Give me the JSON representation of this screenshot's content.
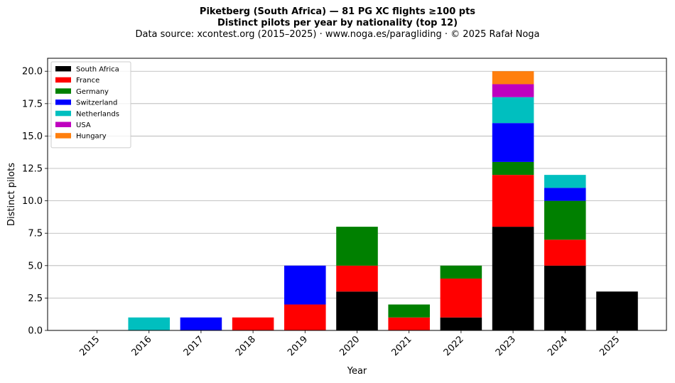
{
  "title": {
    "line1": "Piketberg (South Africa)  —  81 PG XC flights ≥100 pts",
    "line2": "Distinct pilots per year by nationality (top 12)",
    "line3": "Data source: xcontest.org (2015–2025)  ·  www.noga.es/paragliding  ·  © 2025 Rafał Noga"
  },
  "chart_data": {
    "type": "bar",
    "stacked": true,
    "title": "Piketberg (South Africa)  —  81 PG XC flights ≥100 pts",
    "subtitle": "Distinct pilots per year by nationality (top 12)",
    "xlabel": "Year",
    "ylabel": "Distinct pilots",
    "ylim": [
      0,
      21
    ],
    "yticks": [
      "0.0",
      "2.5",
      "5.0",
      "7.5",
      "10.0",
      "12.5",
      "15.0",
      "17.5",
      "20.0"
    ],
    "grid": "y",
    "legend_position": "top-left",
    "categories": [
      "2015",
      "2016",
      "2017",
      "2018",
      "2019",
      "2020",
      "2021",
      "2022",
      "2023",
      "2024",
      "2025"
    ],
    "series": [
      {
        "name": "South Africa",
        "color": "#000000",
        "values": [
          0,
          0,
          0,
          0,
          0,
          3,
          0,
          1,
          8,
          5,
          3
        ]
      },
      {
        "name": "France",
        "color": "#ff0000",
        "values": [
          0,
          0,
          0,
          1,
          2,
          2,
          1,
          3,
          4,
          2,
          0
        ]
      },
      {
        "name": "Germany",
        "color": "#008000",
        "values": [
          0,
          0,
          0,
          0,
          0,
          3,
          1,
          1,
          1,
          3,
          0
        ]
      },
      {
        "name": "Switzerland",
        "color": "#0000ff",
        "values": [
          0,
          0,
          1,
          0,
          3,
          0,
          0,
          0,
          3,
          1,
          0
        ]
      },
      {
        "name": "Netherlands",
        "color": "#00bfbf",
        "values": [
          0,
          1,
          0,
          0,
          0,
          0,
          0,
          0,
          2,
          1,
          0
        ]
      },
      {
        "name": "USA",
        "color": "#bf00bf",
        "values": [
          0,
          0,
          0,
          0,
          0,
          0,
          0,
          0,
          1,
          0,
          0
        ]
      },
      {
        "name": "Hungary",
        "color": "#ff7f0e",
        "values": [
          0,
          0,
          0,
          0,
          0,
          0,
          0,
          0,
          1,
          0,
          0
        ]
      }
    ]
  }
}
